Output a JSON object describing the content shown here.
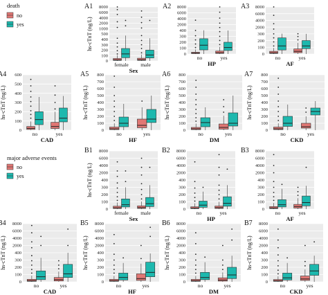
{
  "colors": {
    "no": "#e07774",
    "yes": "#1db8ae",
    "panel_bg": "#ebebeb",
    "grid": "#ffffff"
  },
  "legends": [
    {
      "title": "death",
      "items": [
        "no",
        "yes"
      ]
    },
    {
      "title": "major adverse events",
      "items": [
        "no",
        "yes"
      ]
    }
  ],
  "chart_data": [
    {
      "id": "A1",
      "type": "box",
      "ylabel": "hs-cTnT (ng/L)",
      "xlabel": "Sex",
      "categories": [
        "female",
        "male"
      ],
      "yticks": [
        0,
        100,
        200,
        300,
        400,
        500,
        1000,
        2000,
        4000,
        6000,
        8000
      ],
      "ylabels": [
        "0",
        "100",
        "200",
        "300",
        "400",
        "500",
        "1000",
        "2000",
        "4000",
        "6000",
        "8000"
      ],
      "boxes": [
        [
          {
            "med": 20,
            "q1": 10,
            "q3": 45,
            "max": 105,
            "out": [
              130,
              190,
              260,
              330,
              420,
              1200,
              2500,
              5200,
              7000,
              8200
            ]
          },
          {
            "med": 130,
            "q1": 60,
            "q3": 230,
            "max": 470,
            "out": [
              1500,
              3000
            ]
          }
        ],
        [
          {
            "med": 22,
            "q1": 10,
            "q3": 50,
            "max": 118,
            "out": [
              150,
              230,
              300,
              380,
              470,
              1100,
              2200,
              4200,
              6500
            ]
          },
          {
            "med": 110,
            "q1": 55,
            "q3": 200,
            "max": 420,
            "out": [
              3000
            ]
          }
        ]
      ]
    },
    {
      "id": "A2",
      "type": "box",
      "ylabel": "",
      "xlabel": "HP",
      "categories": [
        "no",
        "yes"
      ],
      "yticks": [
        0,
        100,
        200,
        300,
        400,
        2000,
        4000,
        6000,
        8000
      ],
      "ylabels": [
        "0",
        "100",
        "200",
        "300",
        "400",
        "2000",
        "4000",
        "6000",
        "8000"
      ],
      "boxes": [
        [
          {
            "med": 15,
            "q1": 7,
            "q3": 30,
            "max": 75,
            "out": [
              110,
              170,
              240,
              310,
              400,
              3500
            ]
          },
          {
            "med": 150,
            "q1": 70,
            "q3": 260,
            "max": 440,
            "out": []
          }
        ],
        [
          {
            "med": 22,
            "q1": 10,
            "q3": 50,
            "max": 120,
            "out": [
              160,
              230,
              300,
              380,
              1200,
              2500,
              4200,
              6200,
              8000
            ]
          },
          {
            "med": 110,
            "q1": 60,
            "q3": 200,
            "max": 410,
            "out": []
          }
        ]
      ]
    },
    {
      "id": "A3",
      "type": "box",
      "ylabel": "",
      "xlabel": "AF",
      "categories": [
        "no",
        "yes"
      ],
      "yticks": [
        0,
        100,
        200,
        300,
        2000,
        4000,
        6000,
        8000
      ],
      "ylabels": [
        "0",
        "100",
        "200",
        "300",
        "2000",
        "4000",
        "6000",
        "8000"
      ],
      "boxes": [
        [
          {
            "med": 18,
            "q1": 8,
            "q3": 40,
            "max": 90,
            "out": [
              120,
              180,
              240,
              300,
              1500,
              3000,
              5500,
              8000
            ]
          },
          {
            "med": 120,
            "q1": 60,
            "q3": 240,
            "max": 350,
            "out": []
          }
        ],
        [
          {
            "med": 40,
            "q1": 20,
            "q3": 75,
            "max": 165,
            "out": [
              210,
              260,
              320
            ]
          },
          {
            "med": 120,
            "q1": 80,
            "q3": 200,
            "max": 300,
            "out": []
          }
        ]
      ]
    },
    {
      "id": "A4",
      "type": "box",
      "ylabel": "hs-cTnT (ng/L)",
      "xlabel": "CAD",
      "categories": [
        "no",
        "yes"
      ],
      "yticks": [
        0,
        100,
        200,
        300,
        400,
        500,
        600
      ],
      "ylabels": [
        "0",
        "100",
        "200",
        "300",
        "400",
        "500",
        "600"
      ],
      "boxes": [
        [
          {
            "med": 20,
            "q1": 8,
            "q3": 40,
            "max": 95,
            "out": [
              130,
              170,
              210,
              260,
              310,
              360,
              420,
              480,
              550
            ]
          },
          {
            "med": 115,
            "q1": 60,
            "q3": 200,
            "max": 360,
            "out": []
          }
        ],
        [
          {
            "med": 40,
            "q1": 18,
            "q3": 85,
            "max": 200,
            "out": [
              230,
              300,
              380,
              480
            ]
          },
          {
            "med": 130,
            "q1": 90,
            "q3": 240,
            "max": 370,
            "out": []
          }
        ]
      ]
    },
    {
      "id": "A5",
      "type": "box",
      "ylabel": "hs-cTnT (ng/L)",
      "xlabel": "HF",
      "categories": [
        "no",
        "yes"
      ],
      "yticks": [
        0,
        100,
        200,
        300,
        400,
        500,
        600,
        700,
        800
      ],
      "ylabels": [
        "0",
        "100",
        "200",
        "300",
        "400",
        "500",
        "600",
        "700",
        "800"
      ],
      "boxes": [
        [
          {
            "med": 20,
            "q1": 8,
            "q3": 45,
            "max": 100,
            "out": [
              140,
              200,
              270,
              340,
              420,
              500,
              620,
              780
            ]
          },
          {
            "med": 100,
            "q1": 50,
            "q3": 190,
            "max": 380,
            "out": []
          }
        ],
        [
          {
            "med": 70,
            "q1": 35,
            "q3": 160,
            "max": 330,
            "out": [
              420
            ]
          },
          {
            "med": 160,
            "q1": 110,
            "q3": 300,
            "max": 500,
            "out": []
          }
        ]
      ]
    },
    {
      "id": "A6",
      "type": "box",
      "ylabel": "hs-cTnT (ng/L)",
      "xlabel": "DM",
      "categories": [
        "no",
        "yes"
      ],
      "yticks": [
        0,
        100,
        200,
        300,
        400,
        500,
        600,
        700,
        800
      ],
      "ylabels": [
        "0",
        "100",
        "200",
        "300",
        "400",
        "500",
        "600",
        "700",
        "800"
      ],
      "boxes": [
        [
          {
            "med": 20,
            "q1": 8,
            "q3": 40,
            "max": 95,
            "out": [
              130,
              180,
              240,
              300,
              370,
              440,
              520,
              620,
              720
            ]
          },
          {
            "med": 110,
            "q1": 50,
            "q3": 180,
            "max": 330,
            "out": []
          }
        ],
        [
          {
            "med": 40,
            "q1": 15,
            "q3": 90,
            "max": 210,
            "out": [
              260,
              340,
              440
            ]
          },
          {
            "med": 100,
            "q1": 60,
            "q3": 250,
            "max": 500,
            "out": []
          }
        ]
      ]
    },
    {
      "id": "A7",
      "type": "box",
      "ylabel": "hs-cTnT (ng/L)",
      "xlabel": "CKD",
      "categories": [
        "no",
        "yes"
      ],
      "yticks": [
        0,
        100,
        200,
        300,
        400,
        500,
        600,
        700,
        800
      ],
      "ylabels": [
        "0",
        "100",
        "200",
        "300",
        "400",
        "500",
        "600",
        "700",
        "800"
      ],
      "boxes": [
        [
          {
            "med": 20,
            "q1": 8,
            "q3": 45,
            "max": 100,
            "out": [
              140,
              200,
              270,
              340,
              420,
              520,
              620,
              750
            ]
          },
          {
            "med": 100,
            "q1": 55,
            "q3": 200,
            "max": 370,
            "out": []
          }
        ],
        [
          {
            "med": 50,
            "q1": 30,
            "q3": 100,
            "max": 200,
            "out": [
              260,
              320
            ]
          },
          {
            "med": 270,
            "q1": 220,
            "q3": 320,
            "max": 420,
            "out": []
          }
        ]
      ]
    },
    {
      "id": "B1",
      "type": "box",
      "ylabel": "hs-cTnT (ng/L)",
      "xlabel": "Sex",
      "categories": [
        "female",
        "male"
      ],
      "yticks": [
        0,
        100,
        200,
        300,
        400,
        2000,
        4000,
        6000,
        8000
      ],
      "ylabels": [
        "0",
        "100",
        "200",
        "300",
        "400",
        "2000",
        "4000",
        "6000",
        "8000"
      ],
      "boxes": [
        [
          {
            "med": 18,
            "q1": 8,
            "q3": 40,
            "max": 90,
            "out": [
              120,
              170,
              230,
              290,
              360,
              1200,
              2500,
              5000
            ]
          },
          {
            "med": 60,
            "q1": 30,
            "q3": 140,
            "max": 300,
            "out": [
              380,
              2500
            ]
          }
        ],
        [
          {
            "med": 20,
            "q1": 9,
            "q3": 45,
            "max": 105,
            "out": [
              140,
              200,
              270,
              350,
              1500,
              3500,
              6000
            ]
          },
          {
            "med": 75,
            "q1": 35,
            "q3": 160,
            "max": 330,
            "out": [
              3500
            ]
          }
        ]
      ]
    },
    {
      "id": "B2",
      "type": "box",
      "ylabel": "",
      "xlabel": "HP",
      "categories": [
        "no",
        "yes"
      ],
      "yticks": [
        0,
        100,
        200,
        300,
        400,
        2000,
        4000,
        6000,
        8000
      ],
      "ylabels": [
        "0",
        "100",
        "200",
        "300",
        "400",
        "2000",
        "4000",
        "6000",
        "8000"
      ],
      "boxes": [
        [
          {
            "med": 15,
            "q1": 7,
            "q3": 32,
            "max": 80,
            "out": [
              110,
              160,
              220,
              290,
              380,
              5000
            ]
          },
          {
            "med": 55,
            "q1": 25,
            "q3": 110,
            "max": 240,
            "out": [
              300
            ]
          }
        ],
        [
          {
            "med": 20,
            "q1": 9,
            "q3": 42,
            "max": 100,
            "out": [
              140,
              200,
              260,
              330,
              1500,
              3500,
              7000
            ]
          },
          {
            "med": 80,
            "q1": 40,
            "q3": 170,
            "max": 330,
            "out": [
              3000
            ]
          }
        ]
      ]
    },
    {
      "id": "B3",
      "type": "box",
      "ylabel": "",
      "xlabel": "AF",
      "categories": [
        "no",
        "yes"
      ],
      "yticks": [
        0,
        100,
        200,
        300,
        400,
        2000,
        4000,
        6000,
        8000
      ],
      "ylabels": [
        "0",
        "100",
        "200",
        "300",
        "400",
        "2000",
        "4000",
        "6000",
        "8000"
      ],
      "boxes": [
        [
          {
            "med": 16,
            "q1": 7,
            "q3": 35,
            "max": 85,
            "out": [
              120,
              170,
              230,
              300,
              380,
              2000,
              4000,
              7000
            ]
          },
          {
            "med": 60,
            "q1": 30,
            "q3": 130,
            "max": 280,
            "out": [
              340
            ]
          }
        ],
        [
          {
            "med": 35,
            "q1": 15,
            "q3": 65,
            "max": 150,
            "out": [
              190,
              240,
              300
            ]
          },
          {
            "med": 90,
            "q1": 45,
            "q3": 180,
            "max": 320,
            "out": [
              3500
            ]
          }
        ]
      ]
    },
    {
      "id": "B4",
      "type": "box",
      "ylabel": "hs-cTnT (ng/L)",
      "xlabel": "CAD",
      "categories": [
        "no",
        "yes"
      ],
      "yticks": [
        0,
        100,
        200,
        300,
        400,
        2000,
        4000,
        6000,
        8000
      ],
      "ylabels": [
        "0",
        "100",
        "200",
        "300",
        "400",
        "2000",
        "4000",
        "6000",
        "8000"
      ],
      "boxes": [
        [
          {
            "med": 16,
            "q1": 7,
            "q3": 35,
            "max": 85,
            "out": [
              120,
              170,
              230,
              290,
              360,
              1500,
              3000,
              5500,
              7500
            ]
          },
          {
            "med": 70,
            "q1": 30,
            "q3": 150,
            "max": 330,
            "out": [
              2000,
              4500
            ]
          }
        ],
        [
          {
            "med": 30,
            "q1": 12,
            "q3": 60,
            "max": 140,
            "out": [
              180,
              230,
              290
            ]
          },
          {
            "med": 110,
            "q1": 60,
            "q3": 240,
            "max": 400,
            "out": [
              2000,
              6500
            ]
          }
        ]
      ]
    },
    {
      "id": "B5",
      "type": "box",
      "ylabel": "hs-cTnT (ng/L)",
      "xlabel": "HF",
      "categories": [
        "no",
        "yes"
      ],
      "yticks": [
        0,
        100,
        200,
        300,
        400,
        2000,
        4000,
        6000,
        8000
      ],
      "ylabels": [
        "0",
        "100",
        "200",
        "300",
        "400",
        "2000",
        "4000",
        "6000",
        "8000"
      ],
      "boxes": [
        [
          {
            "med": 16,
            "q1": 7,
            "q3": 34,
            "max": 80,
            "out": [
              120,
              170,
              230,
              300,
              380,
              2500,
              5000
            ]
          },
          {
            "med": 60,
            "q1": 25,
            "q3": 120,
            "max": 260,
            "out": [
              330
            ]
          }
        ],
        [
          {
            "med": 45,
            "q1": 20,
            "q3": 110,
            "max": 250,
            "out": [
              320,
              2000
            ]
          },
          {
            "med": 130,
            "q1": 70,
            "q3": 270,
            "max": 390,
            "out": [
              4500,
              7000
            ]
          }
        ]
      ]
    },
    {
      "id": "B6",
      "type": "box",
      "ylabel": "hs-cTnT (ng/L)",
      "xlabel": "DM",
      "categories": [
        "no",
        "yes"
      ],
      "yticks": [
        0,
        100,
        200,
        300,
        400,
        2000,
        4000,
        6000,
        8000
      ],
      "ylabels": [
        "0",
        "100",
        "200",
        "300",
        "400",
        "2000",
        "4000",
        "6000",
        "8000"
      ],
      "boxes": [
        [
          {
            "med": 16,
            "q1": 7,
            "q3": 34,
            "max": 80,
            "out": [
              120,
              170,
              230,
              300,
              380,
              2500,
              5500
            ]
          },
          {
            "med": 60,
            "q1": 30,
            "q3": 130,
            "max": 270,
            "out": [
              340
            ]
          }
        ],
        [
          {
            "med": 25,
            "q1": 10,
            "q3": 55,
            "max": 130,
            "out": [
              170,
              230,
              300,
              2000
            ]
          },
          {
            "med": 95,
            "q1": 45,
            "q3": 200,
            "max": 360,
            "out": [
              3500,
              6500
            ]
          }
        ]
      ]
    },
    {
      "id": "B7",
      "type": "box",
      "ylabel": "hs-cTnT (ng/L)",
      "xlabel": "CKD",
      "categories": [
        "no",
        "yes"
      ],
      "yticks": [
        0,
        100,
        200,
        300,
        400,
        2000,
        4000,
        6000,
        8000
      ],
      "ylabels": [
        "0",
        "100",
        "200",
        "300",
        "400",
        "2000",
        "4000",
        "6000",
        "8000"
      ],
      "boxes": [
        [
          {
            "med": 15,
            "q1": 7,
            "q3": 32,
            "max": 75,
            "out": [
              110,
              160,
              220,
              290,
              370,
              1500,
              3500,
              6500
            ]
          },
          {
            "med": 55,
            "q1": 25,
            "q3": 120,
            "max": 260,
            "out": [
              330
            ]
          }
        ],
        [
          {
            "med": 40,
            "q1": 20,
            "q3": 80,
            "max": 170,
            "out": [
              220,
              280,
              2000
            ]
          },
          {
            "med": 150,
            "q1": 90,
            "q3": 240,
            "max": 360,
            "out": [
              3000
            ]
          }
        ]
      ]
    }
  ]
}
